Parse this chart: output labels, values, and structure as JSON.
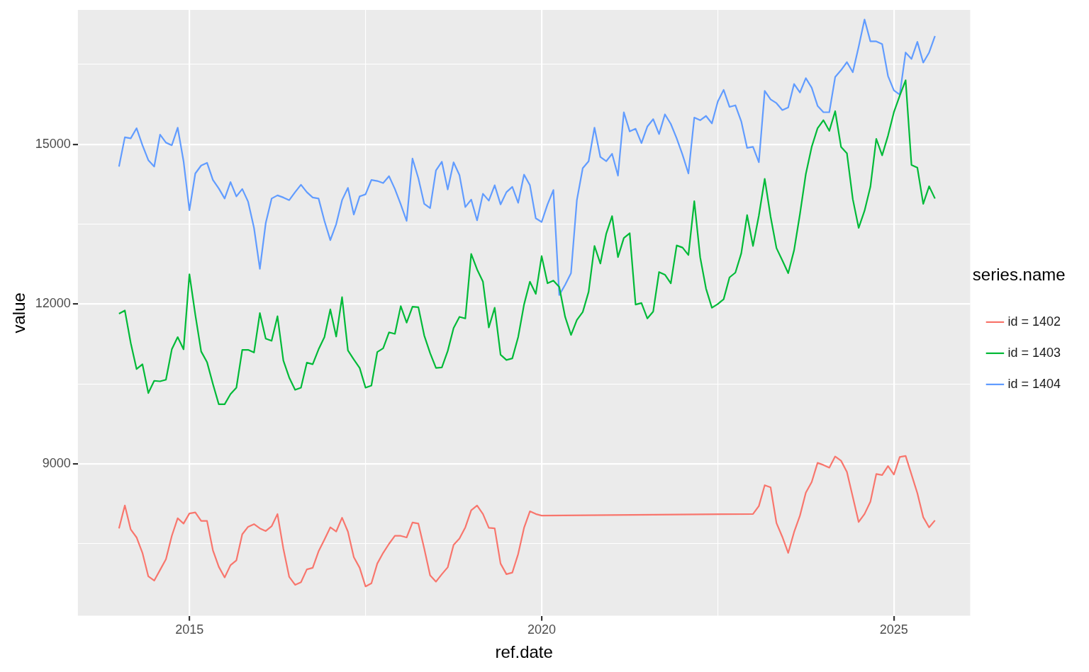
{
  "chart_data": {
    "type": "line",
    "xlabel": "ref.date",
    "ylabel": "value",
    "legend_title": "series.name",
    "legend": "right",
    "grid": true,
    "marker": "none",
    "line_style": "solid",
    "xlim": [
      "2013-06",
      "2026-02"
    ],
    "xticks": [
      "2015",
      {
        "value": "2017-07",
        "label": null
      },
      "2020",
      {
        "value": "2022-07",
        "label": null
      },
      "2025"
    ],
    "ylim": [
      6150,
      17520
    ],
    "yticks": [
      {
        "value": 7500,
        "label": null
      },
      9000,
      {
        "value": 10500,
        "label": null
      },
      12000,
      {
        "value": 13500,
        "label": null
      },
      15000,
      {
        "value": 16500,
        "label": null
      }
    ],
    "x": [
      "2014-01",
      "2014-02",
      "2014-03",
      "2014-04",
      "2014-05",
      "2014-06",
      "2014-07",
      "2014-08",
      "2014-09",
      "2014-10",
      "2014-11",
      "2014-12",
      "2015-01",
      "2015-02",
      "2015-03",
      "2015-04",
      "2015-05",
      "2015-06",
      "2015-07",
      "2015-08",
      "2015-09",
      "2015-10",
      "2015-11",
      "2015-12",
      "2016-01",
      "2016-02",
      "2016-03",
      "2016-04",
      "2016-05",
      "2016-06",
      "2016-07",
      "2016-08",
      "2016-09",
      "2016-10",
      "2016-11",
      "2016-12",
      "2017-01",
      "2017-02",
      "2017-03",
      "2017-04",
      "2017-05",
      "2017-06",
      "2017-07",
      "2017-08",
      "2017-09",
      "2017-10",
      "2017-11",
      "2017-12",
      "2018-01",
      "2018-02",
      "2018-03",
      "2018-04",
      "2018-05",
      "2018-06",
      "2018-07",
      "2018-08",
      "2018-09",
      "2018-10",
      "2018-11",
      "2018-12",
      "2019-01",
      "2019-02",
      "2019-03",
      "2019-04",
      "2019-05",
      "2019-06",
      "2019-07",
      "2019-08",
      "2019-09",
      "2019-10",
      "2019-11",
      "2019-12",
      "2020-01",
      "2020-02",
      "2020-03",
      "2020-04",
      "2020-05",
      "2020-06",
      "2020-07",
      "2020-08",
      "2020-09",
      "2020-10",
      "2020-11",
      "2020-12",
      "2021-01",
      "2021-02",
      "2021-03",
      "2021-04",
      "2021-05",
      "2021-06",
      "2021-07",
      "2021-08",
      "2021-09",
      "2021-10",
      "2021-11",
      "2021-12",
      "2022-01",
      "2022-02",
      "2022-03",
      "2022-04",
      "2022-05",
      "2022-06",
      "2022-07",
      "2022-08",
      "2022-09",
      "2022-10",
      "2022-11",
      "2022-12",
      "2023-01",
      "2023-02",
      "2023-03",
      "2023-04",
      "2023-05",
      "2023-06",
      "2023-07",
      "2023-08",
      "2023-09",
      "2023-10",
      "2023-11",
      "2023-12",
      "2024-01",
      "2024-02",
      "2024-03",
      "2024-04",
      "2024-05",
      "2024-06",
      "2024-07",
      "2024-08",
      "2024-09",
      "2024-10",
      "2024-11",
      "2024-12",
      "2025-01",
      "2025-02",
      "2025-03",
      "2025-04",
      "2025-05",
      "2025-06",
      "2025-07",
      "2025-08"
    ],
    "series": [
      {
        "name": "id = 1402",
        "color": "#f8766d",
        "x": [
          "2014-01",
          "2014-02",
          "2014-03",
          "2014-04",
          "2014-05",
          "2014-06",
          "2014-07",
          "2014-08",
          "2014-09",
          "2014-10",
          "2014-11",
          "2014-12",
          "2015-01",
          "2015-02",
          "2015-03",
          "2015-04",
          "2015-05",
          "2015-06",
          "2015-07",
          "2015-08",
          "2015-09",
          "2015-10",
          "2015-11",
          "2015-12",
          "2016-01",
          "2016-02",
          "2016-03",
          "2016-04",
          "2016-05",
          "2016-06",
          "2016-07",
          "2016-08",
          "2016-09",
          "2016-10",
          "2016-11",
          "2016-12",
          "2017-01",
          "2017-02",
          "2017-03",
          "2017-04",
          "2017-05",
          "2017-06",
          "2017-07",
          "2017-08",
          "2017-09",
          "2017-10",
          "2017-11",
          "2017-12",
          "2018-01",
          "2018-02",
          "2018-03",
          "2018-04",
          "2018-05",
          "2018-06",
          "2018-07",
          "2018-08",
          "2018-09",
          "2018-10",
          "2018-11",
          "2018-12",
          "2019-01",
          "2019-02",
          "2019-03",
          "2019-04",
          "2019-05",
          "2019-06",
          "2019-07",
          "2019-08",
          "2019-09",
          "2019-10",
          "2019-11",
          "2019-12",
          "2020-01",
          "2023-01",
          "2023-02",
          "2023-03",
          "2023-04",
          "2023-05",
          "2023-06",
          "2023-07",
          "2023-08",
          "2023-09",
          "2023-10",
          "2023-11",
          "2023-12",
          "2024-01",
          "2024-02",
          "2024-03",
          "2024-04",
          "2024-05",
          "2024-06",
          "2024-07",
          "2024-08",
          "2024-09",
          "2024-10",
          "2024-11",
          "2024-12",
          "2025-01",
          "2025-02",
          "2025-03",
          "2025-04",
          "2025-05",
          "2025-06",
          "2025-07",
          "2025-08"
        ],
        "values": [
          7790,
          8220,
          7770,
          7620,
          7330,
          6890,
          6810,
          7010,
          7210,
          7650,
          7980,
          7880,
          8070,
          8090,
          7930,
          7930,
          7380,
          7070,
          6870,
          7100,
          7190,
          7680,
          7820,
          7870,
          7790,
          7740,
          7830,
          8060,
          7410,
          6880,
          6730,
          6780,
          7020,
          7050,
          7360,
          7580,
          7810,
          7730,
          7990,
          7730,
          7250,
          7050,
          6700,
          6760,
          7130,
          7330,
          7500,
          7650,
          7650,
          7620,
          7900,
          7880,
          7410,
          6910,
          6790,
          6930,
          7060,
          7480,
          7600,
          7810,
          8130,
          8220,
          8060,
          7800,
          7790,
          7130,
          6930,
          6960,
          7310,
          7800,
          8110,
          8060,
          8030,
          8060,
          8210,
          8600,
          8560,
          7890,
          7630,
          7330,
          7720,
          8030,
          8460,
          8660,
          9020,
          8980,
          8930,
          9140,
          9060,
          8850,
          8380,
          7910,
          8060,
          8290,
          8810,
          8790,
          8960,
          8800,
          9130,
          9150,
          8800,
          8450,
          8000,
          7810,
          7940
        ]
      },
      {
        "name": "id = 1403",
        "color": "#00ba38",
        "values": [
          11820,
          11880,
          11270,
          10780,
          10870,
          10330,
          10560,
          10550,
          10580,
          11150,
          11380,
          11150,
          12560,
          11800,
          11110,
          10910,
          10500,
          10120,
          10120,
          10310,
          10430,
          11140,
          11140,
          11090,
          11830,
          11350,
          11310,
          11770,
          10940,
          10620,
          10390,
          10430,
          10900,
          10870,
          11150,
          11380,
          11900,
          11390,
          12130,
          11130,
          10960,
          10800,
          10430,
          10470,
          11100,
          11170,
          11470,
          11440,
          11960,
          11650,
          11950,
          11940,
          11410,
          11080,
          10800,
          10810,
          11120,
          11550,
          11760,
          11730,
          12940,
          12650,
          12420,
          11560,
          11930,
          11050,
          10950,
          10980,
          11380,
          11990,
          12420,
          12190,
          12900,
          12390,
          12440,
          12320,
          11760,
          11420,
          11700,
          11850,
          12230,
          13090,
          12760,
          13320,
          13650,
          12880,
          13240,
          13330,
          11990,
          12020,
          11730,
          11860,
          12600,
          12550,
          12390,
          13100,
          13060,
          12920,
          13930,
          12880,
          12290,
          11930,
          12000,
          12090,
          12500,
          12590,
          12950,
          13670,
          13090,
          13660,
          14350,
          13640,
          13050,
          12820,
          12580,
          13010,
          13690,
          14440,
          14950,
          15300,
          15450,
          15250,
          15620,
          14950,
          14830,
          13970,
          13430,
          13750,
          14200,
          15100,
          14790,
          15160,
          15600,
          15910,
          16200,
          14610,
          14560,
          13880,
          14210,
          13980
        ]
      },
      {
        "name": "id = 1404",
        "color": "#619cff",
        "values": [
          14580,
          15130,
          15110,
          15300,
          14980,
          14700,
          14580,
          15180,
          15030,
          14980,
          15310,
          14680,
          13760,
          14450,
          14600,
          14650,
          14330,
          14170,
          13980,
          14290,
          14020,
          14160,
          13920,
          13430,
          12660,
          13520,
          13980,
          14040,
          14000,
          13950,
          14100,
          14240,
          14100,
          14000,
          13980,
          13560,
          13200,
          13500,
          13950,
          14180,
          13680,
          14020,
          14060,
          14330,
          14310,
          14270,
          14400,
          14160,
          13870,
          13560,
          14730,
          14360,
          13880,
          13800,
          14510,
          14670,
          14150,
          14660,
          14420,
          13820,
          13960,
          13570,
          14070,
          13940,
          14230,
          13870,
          14100,
          14200,
          13900,
          14430,
          14230,
          13610,
          13540,
          13870,
          14140,
          12170,
          12360,
          12580,
          13950,
          14550,
          14680,
          15310,
          14760,
          14680,
          14820,
          14410,
          15600,
          15240,
          15290,
          15020,
          15330,
          15470,
          15190,
          15560,
          15380,
          15110,
          14800,
          14450,
          15500,
          15450,
          15530,
          15390,
          15800,
          16020,
          15700,
          15730,
          15430,
          14930,
          14950,
          14660,
          16000,
          15840,
          15770,
          15640,
          15690,
          16130,
          15970,
          16240,
          16060,
          15720,
          15600,
          15600,
          16260,
          16390,
          16540,
          16350,
          16830,
          17340,
          16930,
          16930,
          16880,
          16280,
          16010,
          15930,
          16720,
          16600,
          16920,
          16530,
          16720,
          17030
        ]
      }
    ]
  }
}
